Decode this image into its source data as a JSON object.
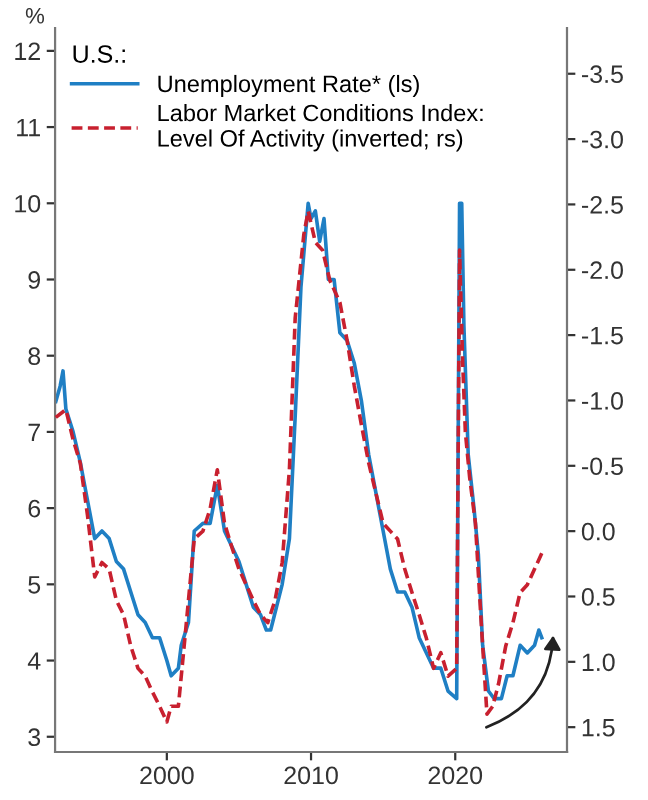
{
  "chart_data": {
    "type": "line",
    "ylabel": "%",
    "legend_title": "U.S.:",
    "legend": "top left",
    "grid": false,
    "xlim": [
      1992.25,
      2027.75
    ],
    "xticks": [
      2000,
      2010,
      2020
    ],
    "ylim": [
      2.8,
      12.3
    ],
    "yticks": [
      3,
      4,
      5,
      6,
      7,
      8,
      9,
      10,
      11,
      12
    ],
    "y2lim": [
      1.69,
      -3.85
    ],
    "y2ticks": [
      -3.5,
      {
        "value": -3,
        "label": "-3.0"
      },
      -2.5,
      {
        "value": -2,
        "label": "-2.0"
      },
      -1.5,
      {
        "value": -1,
        "label": "-1.0"
      },
      -0.5,
      {
        "value": 0,
        "label": "0.0"
      },
      0.5,
      {
        "value": 1,
        "label": "1.0"
      },
      1.5
    ],
    "series": [
      {
        "name": "Unemployment Rate* (ls)",
        "color": "#1f7fc4",
        "line_style": "solid",
        "x": [
          1992.3,
          1992.6,
          1992.8,
          1993,
          1993.5,
          1994,
          1994.5,
          1995,
          1995.5,
          1996,
          1996.5,
          1997,
          1997.5,
          1998,
          1998.5,
          1999,
          1999.5,
          2000,
          2000.3,
          2000.8,
          2001,
          2001.5,
          2001.9,
          2002.5,
          2003,
          2003.5,
          2004,
          2004.5,
          2005,
          2005.5,
          2006,
          2006.5,
          2006.9,
          2007.2,
          2007.6,
          2008,
          2008.5,
          2008.9,
          2009.3,
          2009.8,
          2010,
          2010.3,
          2010.6,
          2010.9,
          2011.2,
          2011.6,
          2012,
          2012.5,
          2013,
          2013.5,
          2014,
          2014.5,
          2015,
          2015.5,
          2016,
          2016.5,
          2017,
          2017.5,
          2018,
          2018.5,
          2019,
          2019.5,
          2020.1,
          2020.3,
          2020.45,
          2020.6,
          2020.9,
          2021.3,
          2021.6,
          2021.9,
          2022.3,
          2022.7,
          2023.2,
          2023.6,
          2024,
          2024.5,
          2025,
          2025.5,
          2025.8,
          2026
        ],
        "values": [
          7.4,
          7.6,
          7.8,
          7.3,
          7.0,
          6.6,
          6.1,
          5.6,
          5.7,
          5.6,
          5.3,
          5.2,
          4.9,
          4.6,
          4.5,
          4.3,
          4.3,
          4.0,
          3.8,
          3.9,
          4.2,
          4.5,
          5.7,
          5.8,
          5.8,
          6.3,
          5.7,
          5.5,
          5.3,
          5.0,
          4.7,
          4.6,
          4.4,
          4.4,
          4.7,
          5.0,
          5.6,
          7.2,
          8.9,
          10.0,
          9.8,
          9.9,
          9.5,
          9.8,
          9.0,
          9.0,
          8.3,
          8.2,
          7.9,
          7.4,
          6.7,
          6.2,
          5.7,
          5.2,
          4.9,
          4.9,
          4.7,
          4.3,
          4.1,
          3.9,
          3.9,
          3.6,
          3.5,
          10.0,
          10.0,
          8.4,
          6.7,
          6.0,
          5.4,
          4.2,
          3.6,
          3.5,
          3.5,
          3.8,
          3.8,
          4.2,
          4.1,
          4.2,
          4.4,
          4.3
        ]
      },
      {
        "name": "Labor Market Conditions Index:\nLevel Of Activity (inverted; rs)",
        "color": "#c8202f",
        "line_style": "dashed",
        "axis": "y2",
        "x": [
          1992.3,
          1993,
          1993.5,
          1994,
          1994.5,
          1995,
          1995.5,
          1996,
          1996.5,
          1997,
          1997.5,
          1998,
          1998.5,
          1999,
          1999.5,
          2000,
          2000.3,
          2000.8,
          2001.2,
          2001.9,
          2002.5,
          2003,
          2003.5,
          2004,
          2004.5,
          2005,
          2005.5,
          2006,
          2006.5,
          2007,
          2007.5,
          2008,
          2008.5,
          2008.9,
          2009.5,
          2009.8,
          2010.3,
          2010.8,
          2011.3,
          2012,
          2012.5,
          2013,
          2013.5,
          2014,
          2014.5,
          2015,
          2015.5,
          2016,
          2016.5,
          2017,
          2017.5,
          2018,
          2018.5,
          2019,
          2019.5,
          2020.1,
          2020.3,
          2020.5,
          2020.7,
          2021,
          2021.4,
          2021.8,
          2022.2,
          2022.6,
          2023,
          2023.5,
          2024,
          2024.5,
          2025,
          2025.5,
          2026
        ],
        "values": [
          -0.87,
          -0.93,
          -0.7,
          -0.52,
          -0.12,
          0.35,
          0.24,
          0.29,
          0.53,
          0.64,
          0.88,
          1.05,
          1.11,
          1.23,
          1.34,
          1.46,
          1.34,
          1.34,
          0.88,
          0.06,
          0.0,
          -0.17,
          -0.47,
          -0.06,
          0.12,
          0.29,
          0.41,
          0.53,
          0.64,
          0.7,
          0.53,
          0.24,
          -0.47,
          -1.63,
          -2.27,
          -2.45,
          -2.21,
          -2.15,
          -1.92,
          -1.75,
          -1.46,
          -1.11,
          -0.81,
          -0.52,
          -0.29,
          -0.06,
          0.0,
          0.06,
          0.29,
          0.47,
          0.64,
          0.82,
          1.05,
          0.93,
          1.11,
          1.05,
          -2.15,
          -1.34,
          -0.76,
          -0.41,
          -0.06,
          0.7,
          1.4,
          1.34,
          1.17,
          0.88,
          0.7,
          0.47,
          0.41,
          0.29,
          0.17
        ]
      }
    ]
  }
}
